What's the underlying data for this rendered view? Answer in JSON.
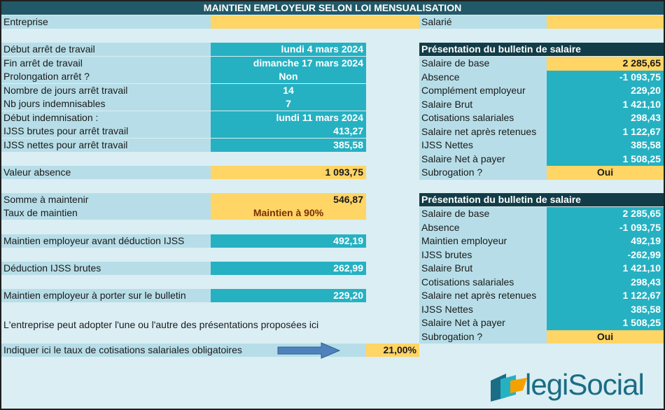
{
  "title": "MAINTIEN EMPLOYEUR SELON LOI MENSUALISATION",
  "top": {
    "entreprise_label": "Entreprise",
    "entreprise_value": "",
    "salarie_label": "Salarié",
    "salarie_value": ""
  },
  "left_rows": [
    {
      "label": "Début arrêt de travail",
      "value": "lundi 4 mars 2024"
    },
    {
      "label": "Fin arrêt de travail",
      "value": "dimanche 17 mars 2024"
    },
    {
      "label": "Prolongation arrêt ?",
      "value": "Non"
    },
    {
      "label": "Nombre de jours arrêt travail",
      "value": "14"
    },
    {
      "label": "Nb jours indemnisables",
      "value": "7"
    },
    {
      "label": "Début indemnisation :",
      "value": "lundi 11 mars 2024"
    },
    {
      "label": "IJSS brutes pour arrêt travail",
      "value": "413,27"
    },
    {
      "label": "IJSS nettes pour arrêt travail",
      "value": "385,58"
    }
  ],
  "valeur_absence": {
    "label": "Valeur absence",
    "value": "1 093,75"
  },
  "somme": {
    "label": "Somme à maintenir",
    "value": "546,87"
  },
  "taux": {
    "label": "Taux de maintien",
    "value": "Maintien à 90%"
  },
  "maintien_avant": {
    "label": "Maintien employeur avant déduction IJSS",
    "value": "492,19"
  },
  "deduction": {
    "label": "Déduction IJSS brutes",
    "value": "262,99"
  },
  "maintien_bulletin": {
    "label": "Maintien employeur à porter sur le bulletin",
    "value": "229,20"
  },
  "note": "L'entreprise peut adopter l'une ou l'autre des présentations proposées ici",
  "cotisations": {
    "label": "Indiquer ici le taux de cotisations salariales obligatoires",
    "value": "21,00%"
  },
  "panel1": {
    "header": "Présentation du bulletin de salaire",
    "rows": [
      {
        "label": "Salaire de base",
        "value": "2 285,65"
      },
      {
        "label": "Absence",
        "value": "-1 093,75"
      },
      {
        "label": "Complément employeur",
        "value": "229,20"
      },
      {
        "label": "Salaire Brut",
        "value": "1 421,10"
      },
      {
        "label": "Cotisations salariales",
        "value": "298,43"
      },
      {
        "label": "Salaire net après retenues",
        "value": "1 122,67"
      },
      {
        "label": "IJSS Nettes",
        "value": "385,58"
      },
      {
        "label": "Salaire Net à payer",
        "value": "1 508,25"
      },
      {
        "label": "Subrogation ?",
        "value": "Oui"
      }
    ]
  },
  "panel2": {
    "header": "Présentation du bulletin de salaire",
    "rows": [
      {
        "label": "Salaire de base",
        "value": "2 285,65"
      },
      {
        "label": "Absence",
        "value": "-1 093,75"
      },
      {
        "label": "Maintien employeur",
        "value": "492,19"
      },
      {
        "label": "IJSS brutes",
        "value": "-262,99"
      },
      {
        "label": "Salaire Brut",
        "value": "1 421,10"
      },
      {
        "label": "Cotisations salariales",
        "value": "298,43"
      },
      {
        "label": "Salaire net après retenues",
        "value": "1 122,67"
      },
      {
        "label": "IJSS Nettes",
        "value": "385,58"
      },
      {
        "label": "Salaire Net à payer",
        "value": "1 508,25"
      },
      {
        "label": "Subrogation ?",
        "value": "Oui"
      }
    ]
  },
  "logo": {
    "text": "legiSocial",
    "icon": "legisocial-logo-icon"
  },
  "colors": {
    "banner": "#215968",
    "teal": "#26b1c2",
    "yellow": "#ffd565",
    "label_blue": "#b7dee8",
    "background": "#daeef3",
    "panel_header": "#123d48",
    "arrow": "#4f81bd"
  }
}
